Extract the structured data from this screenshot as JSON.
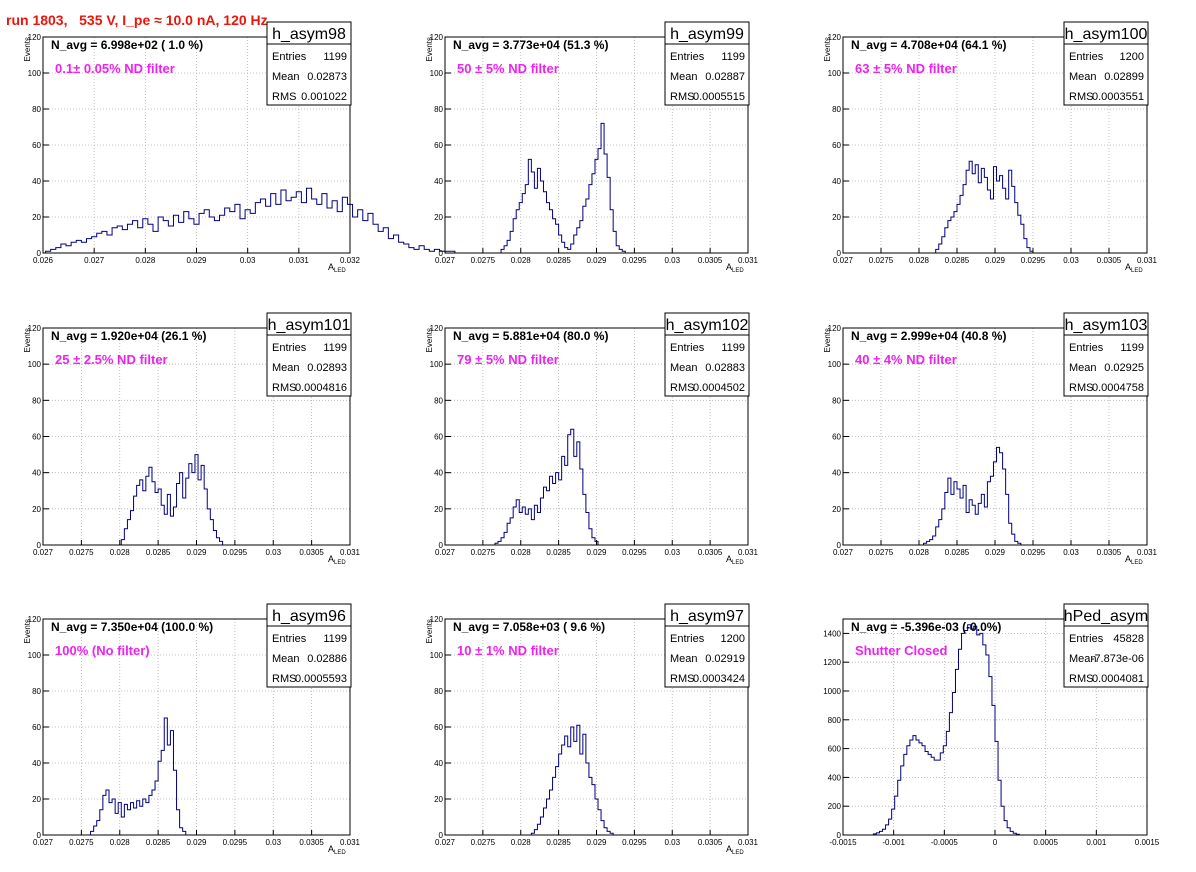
{
  "page": {
    "title": "run 1803,   535 V, I_pe ≈ 10.0 nA, 120 Hz",
    "colors": {
      "title": "#e8160c",
      "annotation": "#ee22ee",
      "hist": "#000080",
      "grid": "#b0b0b0"
    }
  },
  "chart_data": [
    {
      "type": "bar",
      "histogram": "h_asym98",
      "navg": "N_avg = 6.998e+02 ( 1.0 %)",
      "note": "0.1± 0.05% ND filter",
      "stats": {
        "entries": "1199",
        "mean": "0.02873",
        "rms": "0.001022"
      },
      "ylabel": "Events",
      "xlabel": "A",
      "xlabel_sub": "LED",
      "xlim": [
        0.026,
        0.032
      ],
      "ylim": [
        0,
        120
      ],
      "xticks": [
        "0.026",
        "0.027",
        "0.028",
        "0.029",
        "0.03",
        "0.031",
        "0.032"
      ],
      "yticks": [
        "0",
        "20",
        "40",
        "60",
        "80",
        "100",
        "120"
      ],
      "bin_start": 0.02605,
      "bin_width": 0.0001,
      "values": [
        1,
        2,
        3,
        5,
        4,
        6,
        7,
        6,
        8,
        9,
        11,
        12,
        10,
        14,
        15,
        13,
        16,
        18,
        14,
        19,
        16,
        12,
        20,
        18,
        15,
        21,
        17,
        23,
        19,
        16,
        22,
        24,
        20,
        18,
        21,
        25,
        23,
        27,
        19,
        24,
        22,
        28,
        30,
        26,
        33,
        27,
        35,
        29,
        31,
        34,
        28,
        36,
        30,
        27,
        33,
        25,
        29,
        23,
        31,
        27,
        20,
        24,
        18,
        22,
        16,
        12,
        14,
        8,
        10,
        6,
        5,
        3,
        2,
        4,
        2,
        1,
        2,
        1,
        1,
        1
      ],
      "grid": true
    },
    {
      "type": "bar",
      "histogram": "h_asym99",
      "navg": "N_avg = 3.773e+04 (51.3 %)",
      "note": "50 ± 5% ND filter",
      "stats": {
        "entries": "1199",
        "mean": "0.02887",
        "rms": "0.0005515"
      },
      "ylabel": "Events",
      "xlabel": "A",
      "xlabel_sub": "LED",
      "xlim": [
        0.027,
        0.031
      ],
      "ylim": [
        0,
        120
      ],
      "xticks": [
        "0.027",
        "0.0275",
        "0.028",
        "0.0285",
        "0.029",
        "0.0295",
        "0.03",
        "0.0305",
        "0.031"
      ],
      "yticks": [
        "0",
        "20",
        "40",
        "60",
        "80",
        "100",
        "120"
      ],
      "bin_start": 0.02774,
      "bin_width": 4e-05,
      "values": [
        2,
        4,
        7,
        12,
        19,
        24,
        28,
        33,
        38,
        52,
        45,
        36,
        47,
        40,
        34,
        28,
        24,
        19,
        16,
        10,
        6,
        3,
        2,
        5,
        10,
        14,
        18,
        26,
        30,
        38,
        44,
        52,
        58,
        72,
        55,
        42,
        24,
        12,
        4,
        2,
        1
      ],
      "grid": true
    },
    {
      "type": "bar",
      "histogram": "h_asym100",
      "navg": "N_avg = 4.708e+04 (64.1 %)",
      "note": "63 ± 5% ND filter",
      "stats": {
        "entries": "1200",
        "mean": "0.02899",
        "rms": "0.0003551"
      },
      "ylabel": "Events",
      "xlabel": "A",
      "xlabel_sub": "LED",
      "xlim": [
        0.027,
        0.031
      ],
      "ylim": [
        0,
        120
      ],
      "xticks": [
        "0.027",
        "0.0275",
        "0.028",
        "0.0285",
        "0.029",
        "0.0295",
        "0.03",
        "0.0305",
        "0.031"
      ],
      "yticks": [
        "0",
        "20",
        "40",
        "60",
        "80",
        "100",
        "120"
      ],
      "bin_start": 0.02822,
      "bin_width": 4e-05,
      "values": [
        2,
        5,
        9,
        14,
        18,
        20,
        23,
        27,
        32,
        38,
        46,
        51,
        44,
        49,
        39,
        47,
        42,
        35,
        30,
        48,
        40,
        43,
        36,
        30,
        46,
        37,
        28,
        21,
        16,
        8,
        3,
        1
      ],
      "grid": true
    },
    {
      "type": "bar",
      "histogram": "h_asym101",
      "navg": "N_avg = 1.920e+04 (26.1 %)",
      "note": "25 ± 2.5% ND filter",
      "stats": {
        "entries": "1199",
        "mean": "0.02893",
        "rms": "0.0004816"
      },
      "ylabel": "Events",
      "xlabel": "A",
      "xlabel_sub": "LED",
      "xlim": [
        0.027,
        0.031
      ],
      "ylim": [
        0,
        120
      ],
      "xticks": [
        "0.027",
        "0.0275",
        "0.028",
        "0.0285",
        "0.029",
        "0.0295",
        "0.03",
        "0.0305",
        "0.031"
      ],
      "yticks": [
        "0",
        "20",
        "40",
        "60",
        "80",
        "100",
        "120"
      ],
      "bin_start": 0.02802,
      "bin_width": 4e-05,
      "values": [
        3,
        9,
        14,
        19,
        27,
        33,
        36,
        30,
        38,
        43,
        35,
        29,
        31,
        22,
        17,
        28,
        16,
        21,
        34,
        40,
        26,
        37,
        45,
        40,
        50,
        36,
        44,
        31,
        20,
        14,
        8,
        4,
        2
      ],
      "grid": true
    },
    {
      "type": "bar",
      "histogram": "h_asym102",
      "navg": "N_avg = 5.881e+04 (80.0 %)",
      "note": "79 ± 5% ND filter",
      "stats": {
        "entries": "1199",
        "mean": "0.02883",
        "rms": "0.0004502"
      },
      "ylabel": "Events",
      "xlabel": "A",
      "xlabel_sub": "LED",
      "xlim": [
        0.027,
        0.031
      ],
      "ylim": [
        0,
        120
      ],
      "xticks": [
        "0.027",
        "0.0275",
        "0.028",
        "0.0285",
        "0.029",
        "0.0295",
        "0.03",
        "0.0305",
        "0.031"
      ],
      "yticks": [
        "0",
        "20",
        "40",
        "60",
        "80",
        "100",
        "120"
      ],
      "bin_start": 0.02766,
      "bin_width": 4e-05,
      "values": [
        1,
        2,
        4,
        7,
        12,
        15,
        21,
        25,
        18,
        21,
        17,
        20,
        14,
        22,
        18,
        26,
        32,
        30,
        38,
        34,
        40,
        36,
        49,
        44,
        61,
        64,
        49,
        57,
        42,
        28,
        18,
        9,
        4,
        2
      ],
      "grid": true
    },
    {
      "type": "bar",
      "histogram": "h_asym103",
      "navg": "N_avg = 2.999e+04 (40.8 %)",
      "note": "40 ± 4% ND filter",
      "stats": {
        "entries": "1199",
        "mean": "0.02925",
        "rms": "0.0004758"
      },
      "ylabel": "Events",
      "xlabel": "A",
      "xlabel_sub": "LED",
      "xlim": [
        0.027,
        0.031
      ],
      "ylim": [
        0,
        120
      ],
      "xticks": [
        "0.027",
        "0.0275",
        "0.028",
        "0.0285",
        "0.029",
        "0.0295",
        "0.03",
        "0.0305",
        "0.031"
      ],
      "yticks": [
        "0",
        "20",
        "40",
        "60",
        "80",
        "100",
        "120"
      ],
      "bin_start": 0.02806,
      "bin_width": 4e-05,
      "values": [
        1,
        2,
        3,
        5,
        10,
        14,
        20,
        29,
        37,
        28,
        35,
        31,
        26,
        33,
        18,
        25,
        22,
        17,
        23,
        28,
        21,
        35,
        38,
        46,
        54,
        51,
        42,
        28,
        12,
        6,
        2,
        1
      ],
      "grid": true
    },
    {
      "type": "bar",
      "histogram": "h_asym96",
      "navg": "N_avg = 7.350e+04 (100.0 %)",
      "note": "100% (No filter)",
      "stats": {
        "entries": "1199",
        "mean": "0.02886",
        "rms": "0.0005593"
      },
      "ylabel": "Events",
      "xlabel": "A",
      "xlabel_sub": "LED",
      "xlim": [
        0.027,
        0.031
      ],
      "ylim": [
        0,
        120
      ],
      "xticks": [
        "0.027",
        "0.0275",
        "0.028",
        "0.0285",
        "0.029",
        "0.0295",
        "0.03",
        "0.0305",
        "0.031"
      ],
      "yticks": [
        "0",
        "20",
        "40",
        "60",
        "80",
        "100",
        "120"
      ],
      "bin_start": 0.02762,
      "bin_width": 4e-05,
      "values": [
        2,
        5,
        8,
        14,
        22,
        25,
        18,
        20,
        12,
        18,
        10,
        17,
        14,
        18,
        15,
        19,
        16,
        20,
        18,
        22,
        25,
        30,
        41,
        47,
        65,
        50,
        58,
        36,
        14,
        4,
        2
      ],
      "grid": true
    },
    {
      "type": "bar",
      "histogram": "h_asym97",
      "navg": "N_avg = 7.058e+03 ( 9.6 %)",
      "note": "10 ± 1% ND filter",
      "stats": {
        "entries": "1200",
        "mean": "0.02919",
        "rms": "0.0003424"
      },
      "ylabel": "Events",
      "xlabel": "A",
      "xlabel_sub": "LED",
      "xlim": [
        0.027,
        0.031
      ],
      "ylim": [
        0,
        120
      ],
      "xticks": [
        "0.027",
        "0.0275",
        "0.028",
        "0.0285",
        "0.029",
        "0.0295",
        "0.03",
        "0.0305",
        "0.031"
      ],
      "yticks": [
        "0",
        "20",
        "40",
        "60",
        "80",
        "100",
        "120"
      ],
      "bin_start": 0.02814,
      "bin_width": 4e-05,
      "values": [
        1,
        3,
        6,
        10,
        15,
        20,
        25,
        32,
        38,
        45,
        50,
        55,
        49,
        60,
        52,
        61,
        45,
        56,
        40,
        32,
        28,
        20,
        14,
        8,
        4,
        2,
        1
      ],
      "grid": true
    },
    {
      "type": "bar",
      "histogram": "hPed_asym",
      "navg": "N_avg = -5.396e-03 (-0.0%)",
      "note": "Shutter Closed",
      "stats": {
        "entries": "45828",
        "mean": "-7.873e-06",
        "rms": "0.0004081"
      },
      "ylabel": "",
      "xlabel": "",
      "xlabel_sub": "",
      "xlim": [
        -0.0015,
        0.0015
      ],
      "ylim": [
        0,
        1500
      ],
      "xticks": [
        "-0.0015",
        "-0.001",
        "-0.0005",
        "0",
        "0.0005",
        "0.001",
        "0.0015"
      ],
      "yticks": [
        "0",
        "200",
        "400",
        "600",
        "800",
        "1000",
        "1200",
        "1400"
      ],
      "bin_start": -0.0012,
      "bin_width": 3e-05,
      "values": [
        8,
        15,
        25,
        40,
        70,
        110,
        180,
        270,
        380,
        480,
        560,
        620,
        660,
        690,
        660,
        640,
        620,
        580,
        560,
        540,
        520,
        520,
        570,
        620,
        720,
        850,
        990,
        1150,
        1290,
        1400,
        1420,
        1460,
        1430,
        1450,
        1390,
        1400,
        1320,
        1250,
        1100,
        900,
        650,
        380,
        200,
        100,
        50,
        25,
        12,
        5
      ],
      "grid": true
    }
  ]
}
